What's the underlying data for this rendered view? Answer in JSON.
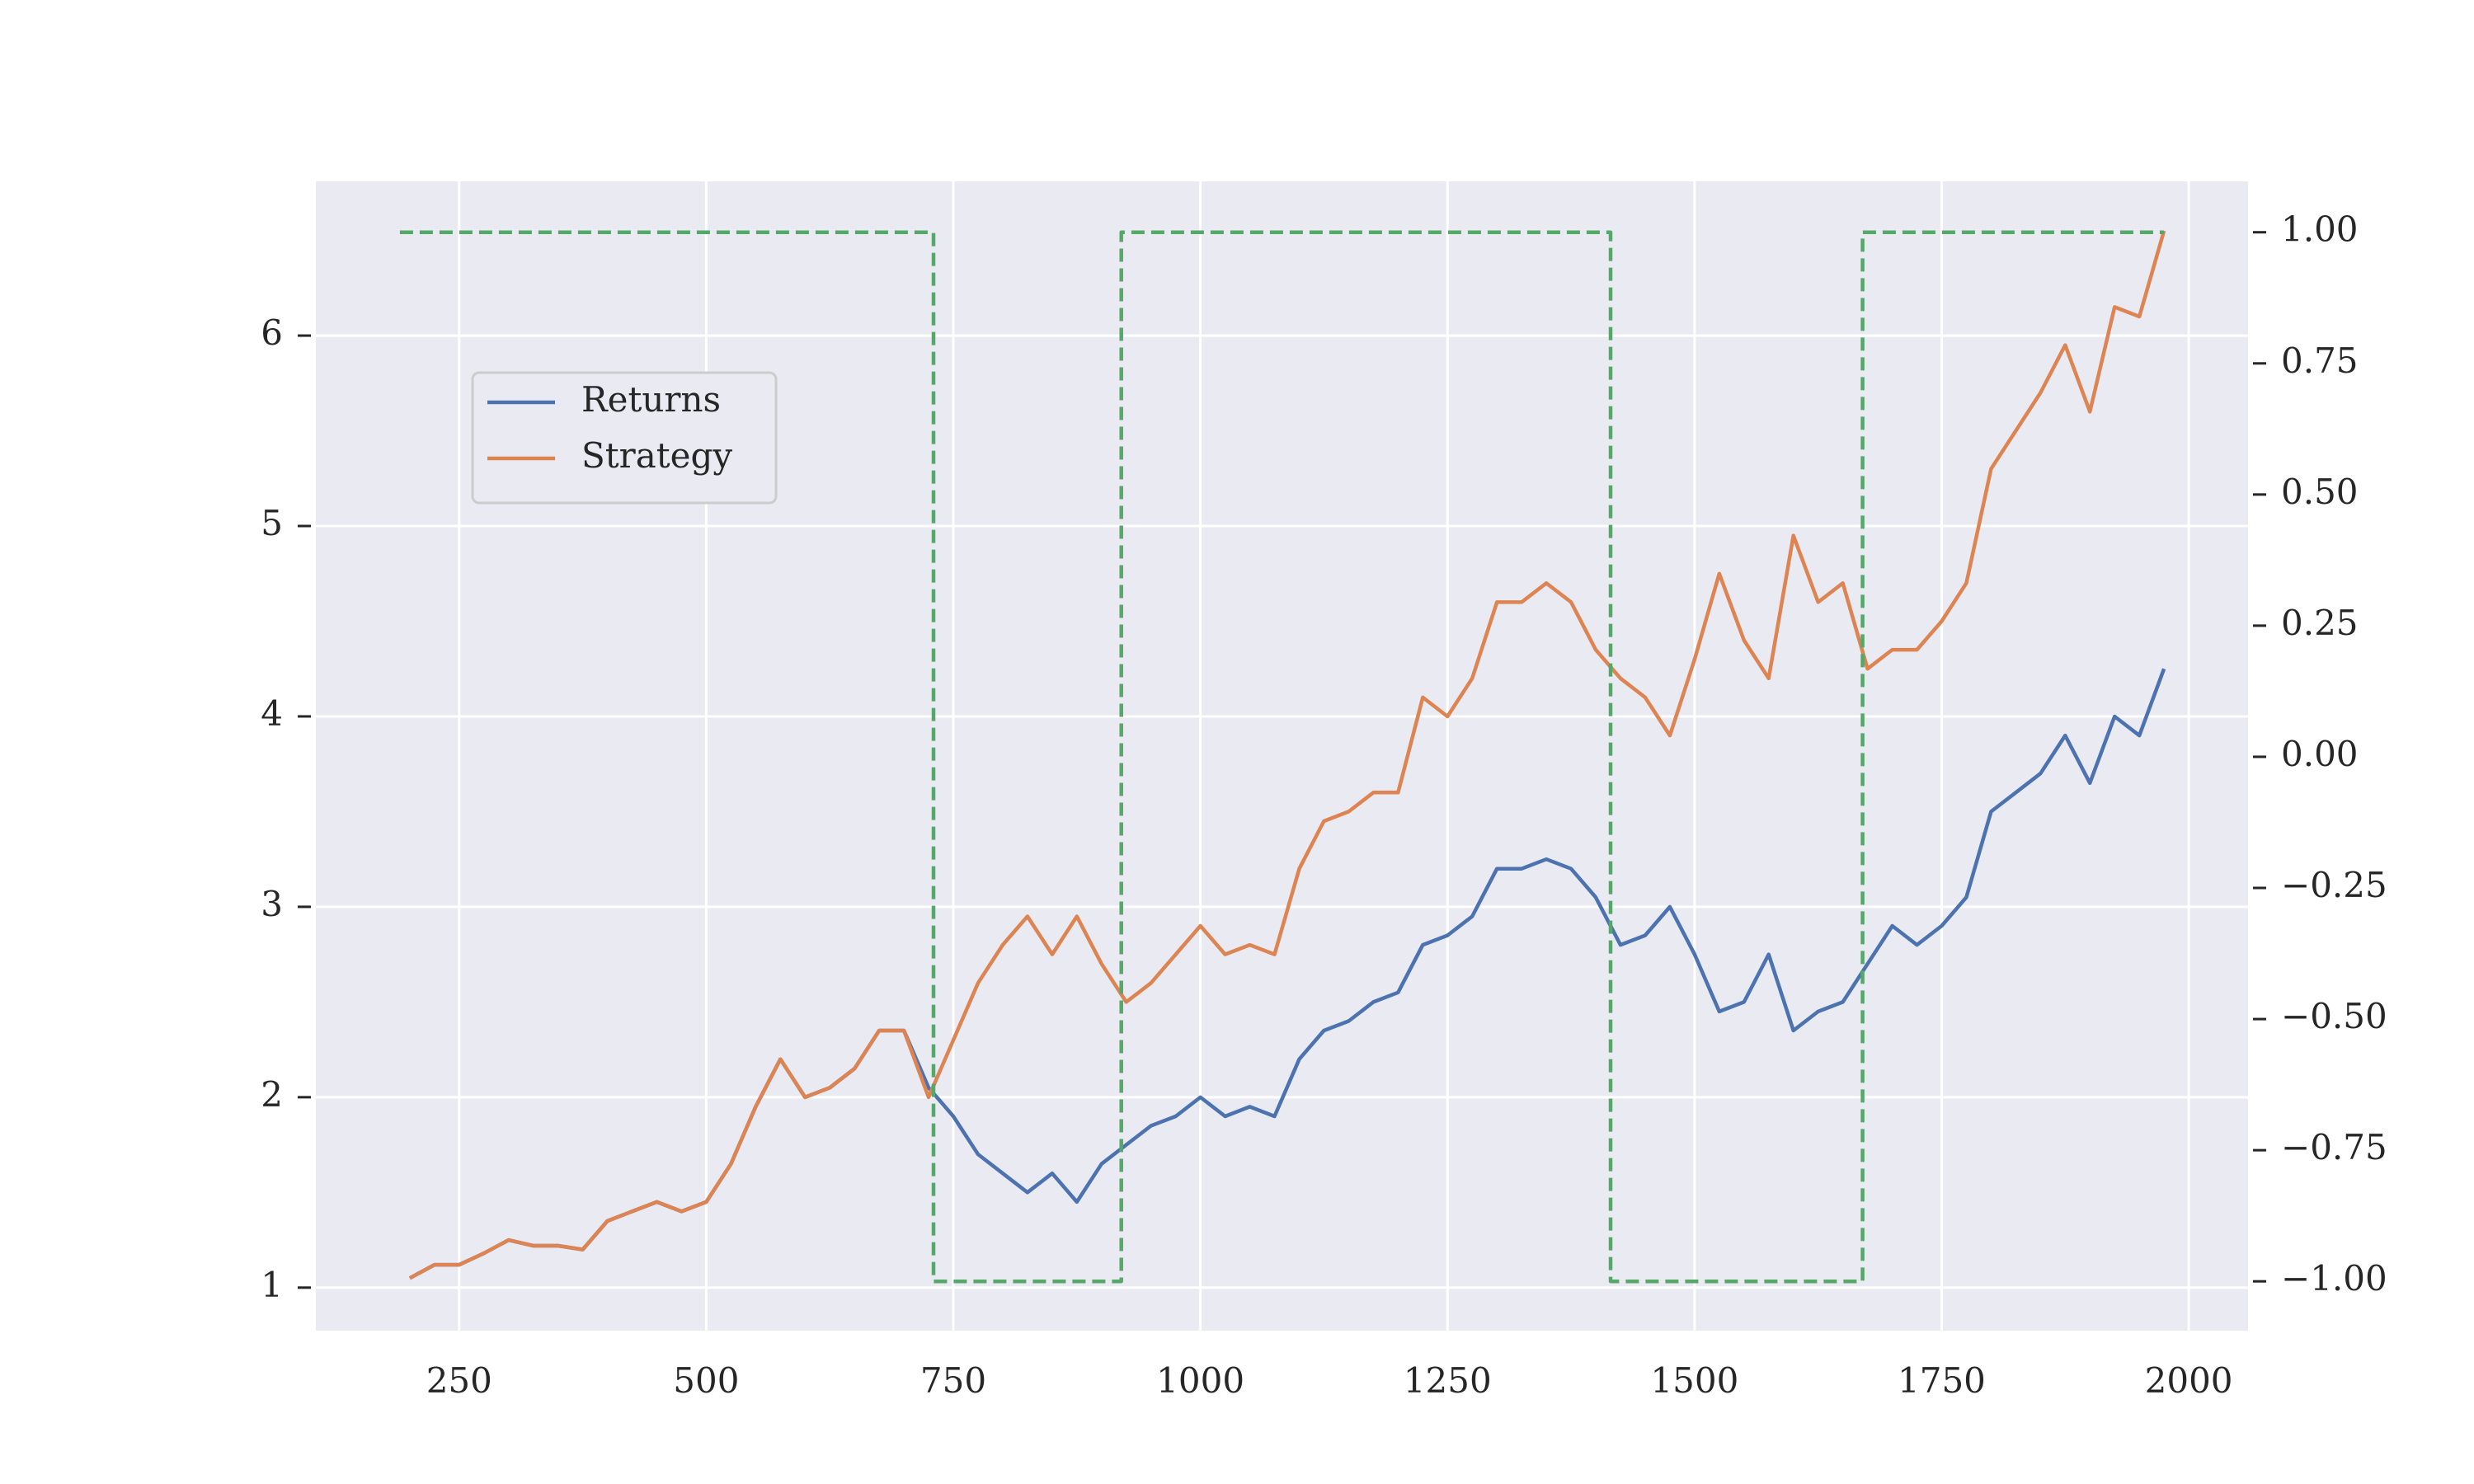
{
  "chart_data": {
    "type": "line",
    "x": [
      200,
      225,
      250,
      275,
      300,
      325,
      350,
      375,
      400,
      425,
      450,
      475,
      500,
      525,
      550,
      575,
      600,
      625,
      650,
      675,
      700,
      725,
      750,
      775,
      800,
      825,
      850,
      875,
      900,
      925,
      950,
      975,
      1000,
      1025,
      1050,
      1075,
      1100,
      1125,
      1150,
      1175,
      1200,
      1225,
      1250,
      1275,
      1300,
      1325,
      1350,
      1375,
      1400,
      1425,
      1450,
      1475,
      1500,
      1525,
      1550,
      1575,
      1600,
      1625,
      1650,
      1675,
      1700,
      1725,
      1750,
      1775,
      1800,
      1825,
      1850,
      1875,
      1900,
      1925,
      1950,
      1975
    ],
    "series": [
      {
        "name": "Returns",
        "color": "#4c72b0",
        "values": [
          1.05,
          1.12,
          1.12,
          1.18,
          1.25,
          1.22,
          1.22,
          1.2,
          1.35,
          1.4,
          1.45,
          1.4,
          1.45,
          1.65,
          1.95,
          2.2,
          2.0,
          2.05,
          2.15,
          2.35,
          2.35,
          2.05,
          1.9,
          1.7,
          1.6,
          1.5,
          1.6,
          1.45,
          1.65,
          1.75,
          1.85,
          1.9,
          2.0,
          1.9,
          1.95,
          1.9,
          2.2,
          2.35,
          2.4,
          2.5,
          2.55,
          2.8,
          2.85,
          2.95,
          3.2,
          3.2,
          3.25,
          3.2,
          3.05,
          2.8,
          2.85,
          3.0,
          2.75,
          2.45,
          2.5,
          2.75,
          2.35,
          2.45,
          2.5,
          2.7,
          2.9,
          2.8,
          2.9,
          3.05,
          3.5,
          3.6,
          3.7,
          3.9,
          3.65,
          4.0,
          3.9,
          4.25
        ]
      },
      {
        "name": "Strategy",
        "color": "#dd8452",
        "values": [
          1.05,
          1.12,
          1.12,
          1.18,
          1.25,
          1.22,
          1.22,
          1.2,
          1.35,
          1.4,
          1.45,
          1.4,
          1.45,
          1.65,
          1.95,
          2.2,
          2.0,
          2.05,
          2.15,
          2.35,
          2.35,
          2.0,
          2.3,
          2.6,
          2.8,
          2.95,
          2.75,
          2.95,
          2.7,
          2.5,
          2.6,
          2.75,
          2.9,
          2.75,
          2.8,
          2.75,
          3.2,
          3.45,
          3.5,
          3.6,
          3.6,
          4.1,
          4.0,
          4.2,
          4.6,
          4.6,
          4.7,
          4.6,
          4.35,
          4.2,
          4.1,
          3.9,
          4.3,
          4.75,
          4.4,
          4.2,
          4.95,
          4.6,
          4.7,
          4.25,
          4.35,
          4.35,
          4.5,
          4.7,
          5.3,
          5.5,
          5.7,
          5.95,
          5.6,
          6.15,
          6.1,
          6.55
        ]
      },
      {
        "color": "#55a868",
        "axis": "y2",
        "dashed": true,
        "x": [
          190,
          730,
          730,
          920,
          920,
          1415,
          1415,
          1670,
          1670,
          1975
        ],
        "values": [
          1,
          1,
          -1,
          -1,
          1,
          1,
          -1,
          -1,
          1,
          1
        ]
      }
    ],
    "xlim": [
      105,
      2060
    ],
    "xticks": [
      250,
      500,
      750,
      1000,
      1250,
      1500,
      1750,
      2000
    ],
    "ylim": [
      0.774,
      6.81
    ],
    "yticks": [
      1,
      2,
      3,
      4,
      5,
      6
    ],
    "y2lim": [
      -1.094,
      1.097
    ],
    "y2ticks": [
      {
        "value": -1,
        "label": "−1.00"
      },
      {
        "value": -0.75,
        "label": "−0.75"
      },
      {
        "value": -0.5,
        "label": "−0.50"
      },
      {
        "value": -0.25,
        "label": "−0.25"
      },
      {
        "value": 0,
        "label": "0.00"
      },
      {
        "value": 0.25,
        "label": "0.25"
      },
      {
        "value": 0.5,
        "label": "0.50"
      },
      {
        "value": 0.75,
        "label": "0.75"
      },
      {
        "value": 1,
        "label": "1.00"
      }
    ],
    "grid": true,
    "legend": "upper left"
  }
}
